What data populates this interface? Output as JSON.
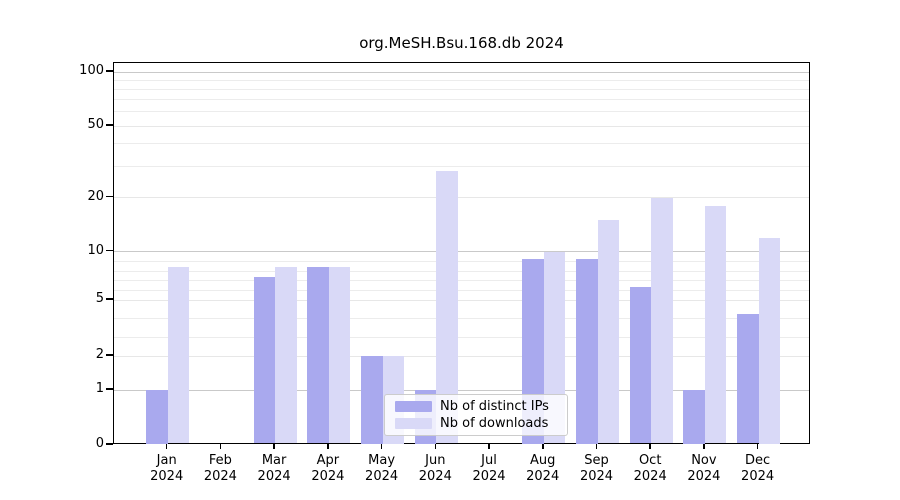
{
  "title": "org.MeSH.Bsu.168.db 2024",
  "chart_data": {
    "type": "bar",
    "title": "org.MeSH.Bsu.168.db 2024",
    "xlabel": "",
    "ylabel": "",
    "categories": [
      "Jan",
      "Feb",
      "Mar",
      "Apr",
      "May",
      "Jun",
      "Jul",
      "Aug",
      "Sep",
      "Oct",
      "Nov",
      "Dec"
    ],
    "x_year_line": "2024",
    "y_ticks": [
      0,
      1,
      2,
      5,
      10,
      20,
      50,
      100
    ],
    "y_scale": "log-like (0,1,2,5 compressed; pure log above 10)",
    "ylim": [
      0,
      100
    ],
    "grid": true,
    "legend_position": "inside bottom-center",
    "series": [
      {
        "name": "Nb of distinct IPs",
        "color": "#a9a9ee",
        "values": [
          1,
          0,
          7,
          8,
          2,
          1,
          0,
          9,
          9,
          6,
          1,
          4
        ]
      },
      {
        "name": "Nb of downloads",
        "color": "#d9d9f7",
        "values": [
          8,
          0,
          8,
          8,
          2,
          28,
          0,
          10,
          15,
          20,
          18,
          12
        ]
      }
    ]
  },
  "colors": {
    "background": "#ffffff",
    "axis": "#000000",
    "grid_minor": "#ececec",
    "grid_major": "#c9c9c9",
    "bar_distinct_ips": "#a9a9ee",
    "bar_downloads": "#d9d9f7"
  }
}
